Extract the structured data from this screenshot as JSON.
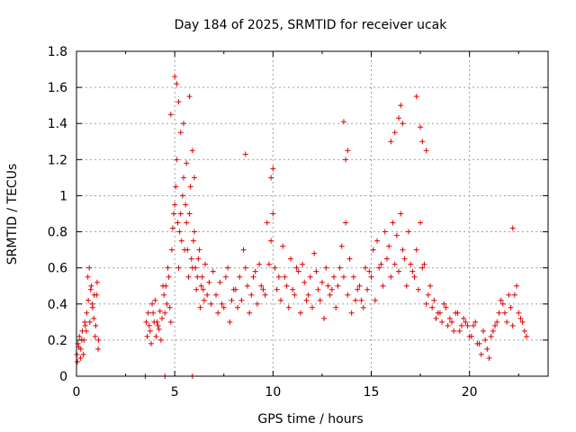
{
  "chart_data": {
    "type": "scatter",
    "title": "Day 184 of 2025, SRMTID for receiver ucak",
    "xlabel": "GPS time / hours",
    "ylabel": "SRMTID / TECUs",
    "xlim": [
      0,
      24
    ],
    "ylim": [
      0,
      1.8
    ],
    "xticks": [
      0,
      5,
      10,
      15,
      20
    ],
    "xtick_labels": [
      "0",
      "5",
      "10",
      "15",
      "20"
    ],
    "yticks": [
      0,
      0.2,
      0.4,
      0.6,
      0.8,
      1,
      1.2,
      1.4,
      1.6,
      1.8
    ],
    "ytick_labels": [
      "0",
      "0.2",
      "0.4",
      "0.6",
      "0.8",
      "1",
      "1.2",
      "1.4",
      "1.6",
      "1.8"
    ],
    "grid": true,
    "marker": "plus",
    "series": [
      {
        "name": "SRMTID",
        "color": "#e00000",
        "x": [
          0.02,
          0.08,
          0.15,
          0.22,
          0.3,
          0.38,
          0.45,
          0.52,
          0.6,
          0.68,
          0.75,
          0.82,
          0.9,
          0.98,
          1.05,
          1.12,
          3.55,
          3.65,
          3.75,
          3.85,
          3.95,
          4.05,
          4.15,
          4.25,
          4.35,
          4.45,
          4.55,
          4.65,
          4.75,
          4.85,
          4.95,
          5.05,
          5.15,
          5.25,
          5.35,
          5.45,
          5.55,
          5.65,
          5.75,
          5.85,
          5.95,
          6.05,
          6.15,
          6.25,
          6.35,
          6.45,
          6.55,
          6.65,
          6.75,
          6.85,
          6.95,
          7.1,
          7.3,
          7.5,
          7.7,
          7.9,
          8.1,
          8.3,
          8.5,
          8.7,
          8.9,
          9.1,
          9.3,
          9.5,
          9.7,
          9.9,
          10.1,
          10.3,
          10.5,
          10.7,
          10.9,
          11.1,
          11.3,
          11.5,
          11.7,
          11.9,
          12.1,
          12.3,
          12.5,
          12.7,
          12.9,
          13.1,
          13.3,
          13.5,
          13.7,
          13.9,
          14.1,
          14.3,
          14.5,
          14.7,
          14.9,
          15.1,
          15.3,
          15.5,
          15.7,
          15.9,
          16.1,
          16.3,
          16.5,
          16.7,
          16.9,
          17.1,
          17.3,
          17.5,
          17.7,
          17.9,
          18.1,
          18.3,
          18.5,
          18.7,
          18.9,
          19.1,
          19.3,
          19.5,
          19.7,
          19.9,
          20.1,
          20.3,
          20.5,
          20.7,
          20.9,
          21.1,
          21.3,
          21.5,
          21.7,
          21.9,
          22.1,
          22.3,
          22.5,
          22.7,
          22.9,
          0.05,
          0.12,
          0.2,
          0.27,
          0.35,
          0.42,
          0.5,
          0.58,
          0.65,
          0.72,
          0.8,
          0.88,
          0.95,
          1.02,
          1.1,
          3.6,
          3.7,
          3.8,
          3.9,
          4.0,
          4.1,
          4.2,
          4.3,
          4.4,
          4.5,
          4.6,
          4.7,
          4.8,
          4.9,
          5.0,
          5.1,
          5.2,
          5.3,
          5.4,
          5.5,
          5.6,
          5.7,
          5.8,
          5.9,
          6.0,
          6.1,
          6.2,
          6.3,
          6.4,
          6.5,
          7.2,
          7.4,
          7.6,
          7.8,
          8.0,
          8.2,
          8.4,
          8.6,
          8.8,
          9.0,
          9.2,
          9.4,
          9.6,
          9.8,
          10.0,
          10.2,
          10.4,
          10.6,
          10.8,
          11.0,
          11.2,
          11.4,
          11.6,
          11.8,
          12.0,
          12.2,
          12.4,
          12.6,
          12.8,
          13.0,
          13.2,
          13.4,
          13.6,
          13.8,
          14.0,
          14.2,
          14.4,
          14.6,
          14.8,
          15.0,
          15.2,
          15.4,
          15.6,
          15.8,
          16.0,
          16.2,
          16.4,
          16.6,
          16.8,
          17.0,
          17.2,
          17.4,
          17.6,
          17.8,
          18.0,
          18.2,
          18.4,
          18.6,
          18.8,
          19.0,
          19.2,
          19.4,
          19.6,
          19.8,
          20.0,
          20.2,
          20.4,
          20.6,
          20.8,
          21.0,
          21.2,
          21.4,
          21.6,
          21.8,
          22.0,
          22.2,
          22.4,
          22.6,
          22.8,
          4.8,
          5.0,
          5.1,
          5.2,
          5.3,
          5.45,
          5.6,
          5.75,
          5.9,
          6.0,
          8.6,
          9.9,
          10.0,
          13.6,
          13.7,
          13.8,
          16.0,
          16.2,
          16.4,
          16.5,
          16.6,
          17.3,
          17.5,
          17.6,
          17.8,
          22.2,
          3.5,
          4.5,
          5.9
        ],
        "y": [
          0.12,
          0.18,
          0.22,
          0.15,
          0.25,
          0.2,
          0.28,
          0.35,
          0.42,
          0.3,
          0.5,
          0.38,
          0.45,
          0.28,
          0.52,
          0.2,
          0.3,
          0.35,
          0.25,
          0.4,
          0.3,
          0.22,
          0.28,
          0.36,
          0.32,
          0.45,
          0.5,
          0.6,
          0.38,
          0.7,
          0.9,
          1.05,
          0.85,
          0.8,
          0.75,
          1.1,
          0.95,
          0.7,
          0.9,
          0.65,
          0.75,
          0.6,
          0.55,
          0.7,
          0.5,
          0.48,
          0.62,
          0.45,
          0.52,
          0.4,
          0.58,
          0.45,
          0.52,
          0.38,
          0.6,
          0.42,
          0.48,
          0.55,
          0.7,
          0.5,
          0.45,
          0.58,
          0.62,
          0.48,
          0.85,
          0.75,
          0.6,
          0.55,
          0.72,
          0.5,
          0.65,
          0.45,
          0.58,
          0.62,
          0.42,
          0.55,
          0.68,
          0.48,
          0.52,
          0.6,
          0.45,
          0.55,
          0.5,
          0.72,
          0.85,
          0.65,
          0.55,
          0.48,
          0.42,
          0.6,
          0.58,
          0.7,
          0.75,
          0.62,
          0.8,
          0.72,
          0.85,
          0.78,
          0.9,
          0.65,
          0.8,
          0.58,
          0.7,
          0.85,
          0.62,
          0.45,
          0.38,
          0.32,
          0.35,
          0.4,
          0.28,
          0.3,
          0.35,
          0.25,
          0.32,
          0.28,
          0.22,
          0.3,
          0.18,
          0.25,
          0.15,
          0.22,
          0.28,
          0.35,
          0.4,
          0.3,
          0.38,
          0.45,
          0.35,
          0.3,
          0.22,
          0.08,
          0.16,
          0.1,
          0.2,
          0.12,
          0.3,
          0.25,
          0.55,
          0.6,
          0.48,
          0.4,
          0.32,
          0.22,
          0.45,
          0.15,
          0.22,
          0.28,
          0.18,
          0.35,
          0.42,
          0.3,
          0.26,
          0.2,
          0.5,
          0.35,
          0.4,
          0.55,
          0.3,
          0.82,
          0.95,
          1.2,
          0.6,
          0.9,
          1.0,
          0.7,
          0.85,
          0.55,
          1.05,
          0.6,
          0.8,
          0.48,
          0.65,
          0.38,
          0.55,
          0.42,
          0.35,
          0.4,
          0.55,
          0.3,
          0.48,
          0.38,
          0.42,
          0.6,
          0.35,
          0.55,
          0.4,
          0.5,
          0.45,
          0.62,
          0.9,
          0.48,
          0.42,
          0.55,
          0.38,
          0.48,
          0.6,
          0.35,
          0.52,
          0.45,
          0.38,
          0.58,
          0.42,
          0.32,
          0.5,
          0.48,
          0.38,
          0.6,
          0.55,
          0.45,
          0.35,
          0.42,
          0.5,
          0.38,
          0.48,
          0.55,
          0.42,
          0.6,
          0.5,
          0.65,
          0.55,
          0.62,
          0.58,
          0.7,
          0.5,
          0.62,
          0.55,
          0.48,
          0.6,
          0.4,
          0.5,
          0.42,
          0.35,
          0.3,
          0.38,
          0.32,
          0.25,
          0.35,
          0.28,
          0.3,
          0.22,
          0.28,
          0.18,
          0.12,
          0.2,
          0.1,
          0.25,
          0.3,
          0.42,
          0.35,
          0.45,
          0.28,
          0.5,
          0.32,
          0.25,
          1.45,
          1.66,
          1.62,
          1.52,
          1.35,
          1.4,
          1.18,
          1.55,
          1.25,
          1.1,
          1.23,
          1.1,
          1.15,
          1.41,
          1.2,
          1.25,
          1.3,
          1.35,
          1.43,
          1.5,
          1.4,
          1.55,
          1.38,
          1.3,
          1.25,
          0.82,
          0.0,
          0.0,
          0.0
        ],
        "big_marker_indices": [
          305,
          306,
          307
        ]
      }
    ]
  }
}
